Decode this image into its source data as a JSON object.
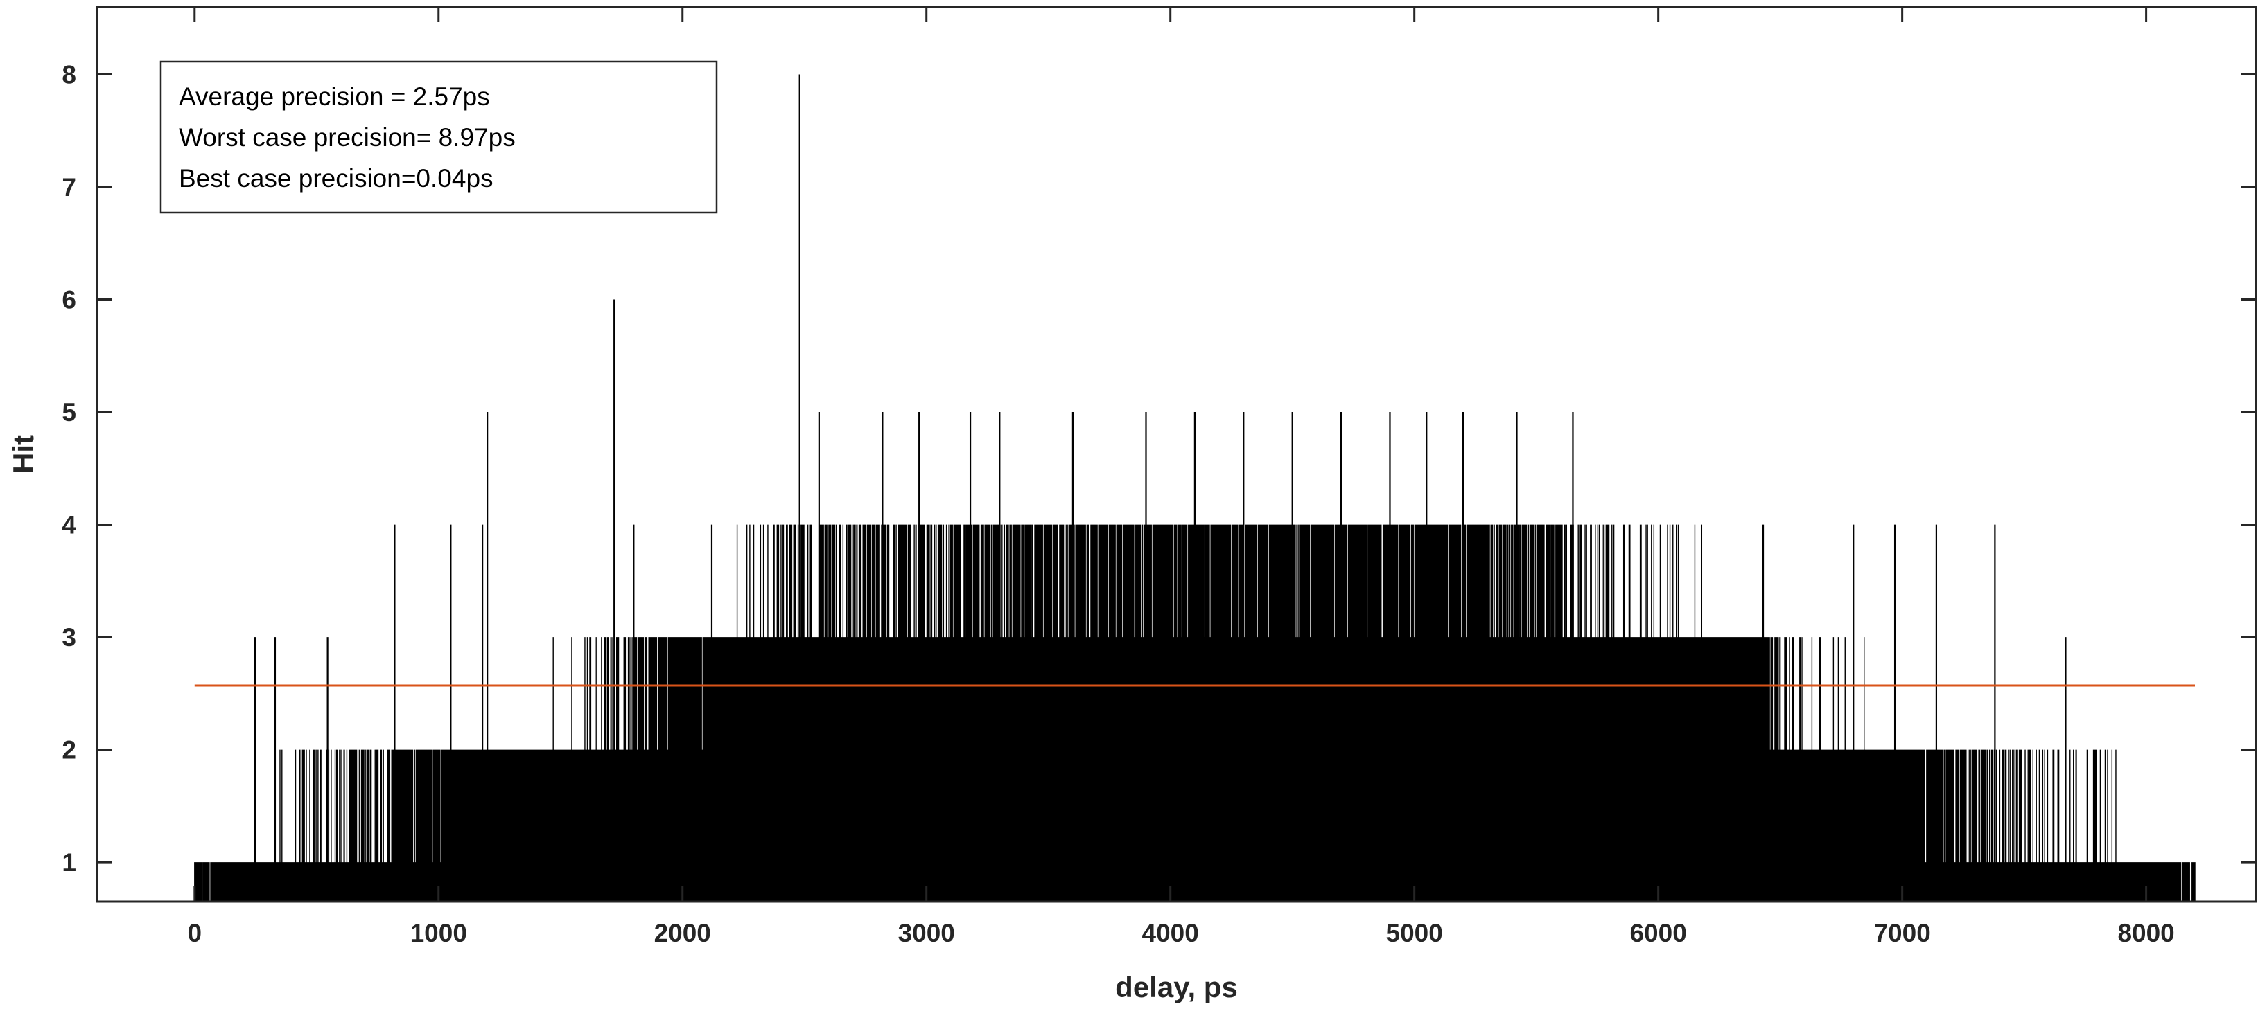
{
  "chart_data": {
    "type": "bar",
    "xlabel": "delay, ps",
    "ylabel": "Hit",
    "xlim": [
      -400,
      8450
    ],
    "ylim": [
      0.65,
      8.6
    ],
    "x_ticks": [
      0,
      1000,
      2000,
      3000,
      4000,
      5000,
      6000,
      7000,
      8000
    ],
    "y_ticks": [
      1,
      2,
      3,
      4,
      5,
      6,
      7,
      8
    ],
    "grid": false,
    "annotation_box": {
      "position": "top-left",
      "lines": [
        "Average precision = 2.57ps",
        "Worst case precision= 8.97ps",
        "Best case precision=0.04ps"
      ]
    },
    "average_line": {
      "y": 2.57,
      "x_range": [
        0,
        8200
      ],
      "color": "#D95319"
    },
    "series": [
      {
        "color": "#000000",
        "x_range": [
          0,
          8200
        ],
        "bin_width_ps": 2,
        "envelope": {
          "x": [
            0,
            200,
            500,
            900,
            1300,
            1600,
            1950,
            2300,
            2550,
            3000,
            3600,
            4200,
            4800,
            5400,
            5900,
            6350,
            6550,
            6950,
            7300,
            7700,
            8000,
            8200
          ],
          "y": [
            0.7,
            1.0,
            1.2,
            1.7,
            2.0,
            2.2,
            2.7,
            3.2,
            3.4,
            3.55,
            3.7,
            3.8,
            3.75,
            3.6,
            3.2,
            3.0,
            2.2,
            2.0,
            1.5,
            1.2,
            1.0,
            0.7
          ]
        },
        "spikes": [
          {
            "x": 248,
            "y": 3
          },
          {
            "x": 330,
            "y": 3
          },
          {
            "x": 545,
            "y": 3
          },
          {
            "x": 820,
            "y": 4
          },
          {
            "x": 1050,
            "y": 4
          },
          {
            "x": 1180,
            "y": 4
          },
          {
            "x": 1200,
            "y": 5
          },
          {
            "x": 1720,
            "y": 6
          },
          {
            "x": 1800,
            "y": 4
          },
          {
            "x": 2120,
            "y": 4
          },
          {
            "x": 2480,
            "y": 8
          },
          {
            "x": 2560,
            "y": 5
          },
          {
            "x": 2820,
            "y": 5
          },
          {
            "x": 2970,
            "y": 5
          },
          {
            "x": 3180,
            "y": 5
          },
          {
            "x": 3300,
            "y": 5
          },
          {
            "x": 3600,
            "y": 5
          },
          {
            "x": 3900,
            "y": 5
          },
          {
            "x": 4100,
            "y": 5
          },
          {
            "x": 4300,
            "y": 5
          },
          {
            "x": 4500,
            "y": 5
          },
          {
            "x": 4700,
            "y": 5
          },
          {
            "x": 4900,
            "y": 5
          },
          {
            "x": 5050,
            "y": 5
          },
          {
            "x": 5200,
            "y": 5
          },
          {
            "x": 5420,
            "y": 5
          },
          {
            "x": 5650,
            "y": 5
          },
          {
            "x": 6430,
            "y": 4
          },
          {
            "x": 6800,
            "y": 4
          },
          {
            "x": 6970,
            "y": 4
          },
          {
            "x": 7140,
            "y": 4
          },
          {
            "x": 7380,
            "y": 4
          },
          {
            "x": 7670,
            "y": 3
          }
        ]
      }
    ]
  }
}
